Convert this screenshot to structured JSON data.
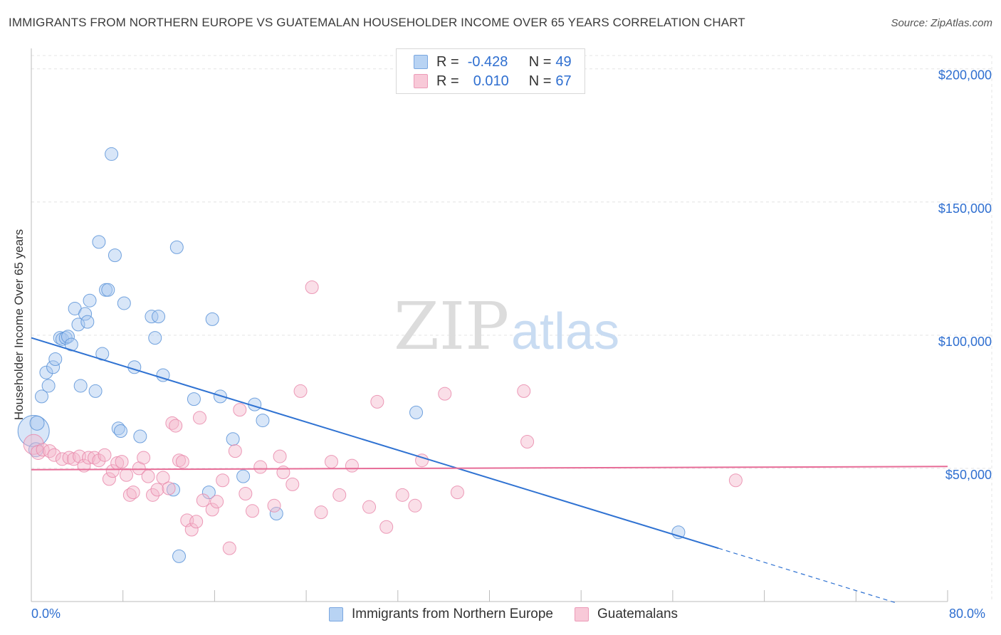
{
  "header": {
    "title": "IMMIGRANTS FROM NORTHERN EUROPE VS GUATEMALAN HOUSEHOLDER INCOME OVER 65 YEARS CORRELATION CHART",
    "source": "Source: ZipAtlas.com"
  },
  "stats": {
    "series1": {
      "r_label": "R =",
      "r_value": "-0.428",
      "n_label": "N =",
      "n_value": "49"
    },
    "series2": {
      "r_label": "R =",
      "r_value": "0.010",
      "n_label": "N =",
      "n_value": "67"
    }
  },
  "colors": {
    "blue_fill": "#a8c8f0",
    "blue_stroke": "#5b93d8",
    "blue_line": "#2f72d2",
    "pink_fill": "#f5b8cc",
    "pink_stroke": "#e98aab",
    "pink_line": "#e76c97",
    "axis_text": "#2f6fd0",
    "grid": "#e4e4e4"
  },
  "chart_data": {
    "type": "scatter",
    "title": "IMMIGRANTS FROM NORTHERN EUROPE VS GUATEMALAN HOUSEHOLDER INCOME OVER 65 YEARS CORRELATION CHART",
    "xlabel": "",
    "ylabel": "Householder Income Over 65 years",
    "xlim": [
      0,
      80
    ],
    "ylim": [
      0,
      205000
    ],
    "x_tick_labels": [
      "0.0%",
      "80.0%"
    ],
    "y_ticks": [
      50000,
      100000,
      150000,
      200000
    ],
    "y_tick_labels": [
      "$50,000",
      "$100,000",
      "$150,000",
      "$200,000"
    ],
    "watermark": {
      "zip": "ZIP",
      "atlas": "atlas"
    },
    "series": [
      {
        "name": "Immigrants from Northern Europe",
        "color": "#5b93d8",
        "trend": {
          "x0": 0,
          "y0": 99000,
          "x1": 60,
          "y1": 20000,
          "dashed_to_x": 75.5,
          "dashed_to_y": -500
        },
        "points": [
          [
            0.2,
            64000,
            22
          ],
          [
            0.5,
            67000,
            10
          ],
          [
            0.4,
            57000,
            10
          ],
          [
            0.9,
            77000,
            9
          ],
          [
            1.3,
            86000,
            9
          ],
          [
            1.5,
            81000,
            9
          ],
          [
            1.9,
            88000,
            9
          ],
          [
            2.1,
            91000,
            9
          ],
          [
            2.5,
            99000,
            9
          ],
          [
            2.7,
            98500,
            9
          ],
          [
            3.0,
            99000,
            9
          ],
          [
            3.2,
            99500,
            9
          ],
          [
            3.5,
            96500,
            9
          ],
          [
            3.8,
            110000,
            9
          ],
          [
            4.1,
            104000,
            9
          ],
          [
            4.3,
            81000,
            9
          ],
          [
            4.7,
            108000,
            9
          ],
          [
            4.9,
            105000,
            9
          ],
          [
            5.1,
            113000,
            9
          ],
          [
            5.6,
            79000,
            9
          ],
          [
            5.9,
            135000,
            9
          ],
          [
            6.2,
            93000,
            9
          ],
          [
            6.5,
            117000,
            9
          ],
          [
            6.7,
            117000,
            9
          ],
          [
            7.0,
            168000,
            9
          ],
          [
            7.3,
            130000,
            9
          ],
          [
            7.6,
            65000,
            9
          ],
          [
            7.8,
            64000,
            9
          ],
          [
            8.1,
            112000,
            9
          ],
          [
            9.0,
            88000,
            9
          ],
          [
            9.5,
            62000,
            9
          ],
          [
            10.5,
            107000,
            9
          ],
          [
            10.8,
            99000,
            9
          ],
          [
            11.1,
            107000,
            9
          ],
          [
            11.5,
            85000,
            9
          ],
          [
            12.4,
            42000,
            9
          ],
          [
            12.7,
            133000,
            9
          ],
          [
            12.9,
            17000,
            9
          ],
          [
            14.2,
            76000,
            9
          ],
          [
            15.5,
            41000,
            9
          ],
          [
            15.8,
            106000,
            9
          ],
          [
            16.5,
            77000,
            9
          ],
          [
            17.6,
            61000,
            9
          ],
          [
            18.5,
            47000,
            9
          ],
          [
            19.5,
            74000,
            9
          ],
          [
            20.2,
            68000,
            9
          ],
          [
            21.4,
            33000,
            9
          ],
          [
            33.6,
            71000,
            9
          ],
          [
            56.5,
            26000,
            9
          ]
        ]
      },
      {
        "name": "Guatemalans",
        "color": "#e98aab",
        "trend": {
          "x0": 0,
          "y0": 49500,
          "x1": 80,
          "y1": 50700
        },
        "points": [
          [
            0.2,
            59000,
            14
          ],
          [
            0.6,
            56000,
            10
          ],
          [
            1.0,
            57000,
            9
          ],
          [
            1.6,
            56500,
            9
          ],
          [
            2.0,
            55000,
            9
          ],
          [
            2.7,
            53500,
            9
          ],
          [
            3.3,
            54000,
            9
          ],
          [
            3.7,
            53500,
            9
          ],
          [
            4.2,
            54500,
            9
          ],
          [
            4.6,
            51000,
            9
          ],
          [
            5.0,
            54000,
            9
          ],
          [
            5.5,
            54000,
            9
          ],
          [
            5.9,
            53000,
            9
          ],
          [
            6.4,
            55000,
            9
          ],
          [
            6.8,
            46000,
            9
          ],
          [
            7.1,
            49000,
            9
          ],
          [
            7.5,
            52000,
            9
          ],
          [
            7.9,
            52500,
            9
          ],
          [
            8.3,
            47500,
            9
          ],
          [
            8.6,
            40000,
            9
          ],
          [
            8.9,
            41000,
            9
          ],
          [
            9.4,
            50000,
            9
          ],
          [
            9.8,
            54000,
            9
          ],
          [
            10.2,
            47000,
            9
          ],
          [
            10.6,
            40000,
            9
          ],
          [
            11.0,
            42000,
            9
          ],
          [
            11.5,
            46500,
            9
          ],
          [
            12.0,
            42500,
            9
          ],
          [
            12.3,
            67000,
            9
          ],
          [
            12.6,
            66000,
            9
          ],
          [
            12.9,
            53000,
            9
          ],
          [
            13.2,
            52500,
            9
          ],
          [
            13.6,
            30500,
            9
          ],
          [
            14.0,
            27000,
            9
          ],
          [
            14.4,
            30000,
            9
          ],
          [
            14.7,
            69000,
            9
          ],
          [
            15.0,
            38000,
            9
          ],
          [
            15.8,
            34500,
            9
          ],
          [
            16.2,
            37500,
            9
          ],
          [
            16.7,
            45500,
            9
          ],
          [
            17.3,
            20000,
            9
          ],
          [
            17.8,
            56500,
            9
          ],
          [
            18.2,
            72000,
            9
          ],
          [
            18.7,
            40500,
            9
          ],
          [
            19.3,
            34000,
            9
          ],
          [
            20.0,
            50500,
            9
          ],
          [
            21.2,
            36000,
            9
          ],
          [
            21.7,
            54500,
            9
          ],
          [
            22.0,
            48500,
            9
          ],
          [
            22.8,
            44000,
            9
          ],
          [
            23.5,
            79000,
            9
          ],
          [
            24.5,
            118000,
            9
          ],
          [
            25.3,
            33500,
            9
          ],
          [
            26.2,
            52500,
            9
          ],
          [
            26.9,
            40000,
            9
          ],
          [
            28.0,
            51000,
            9
          ],
          [
            29.5,
            35500,
            9
          ],
          [
            30.2,
            75000,
            9
          ],
          [
            31.0,
            28000,
            9
          ],
          [
            32.4,
            40000,
            9
          ],
          [
            33.5,
            36000,
            9
          ],
          [
            34.1,
            53000,
            9
          ],
          [
            36.1,
            78000,
            9
          ],
          [
            37.2,
            41000,
            9
          ],
          [
            43.0,
            79000,
            9
          ],
          [
            43.3,
            60000,
            9
          ],
          [
            61.5,
            45500,
            9
          ]
        ]
      }
    ]
  },
  "legend": {
    "series1_label": "Immigrants from Northern Europe",
    "series2_label": "Guatemalans"
  }
}
